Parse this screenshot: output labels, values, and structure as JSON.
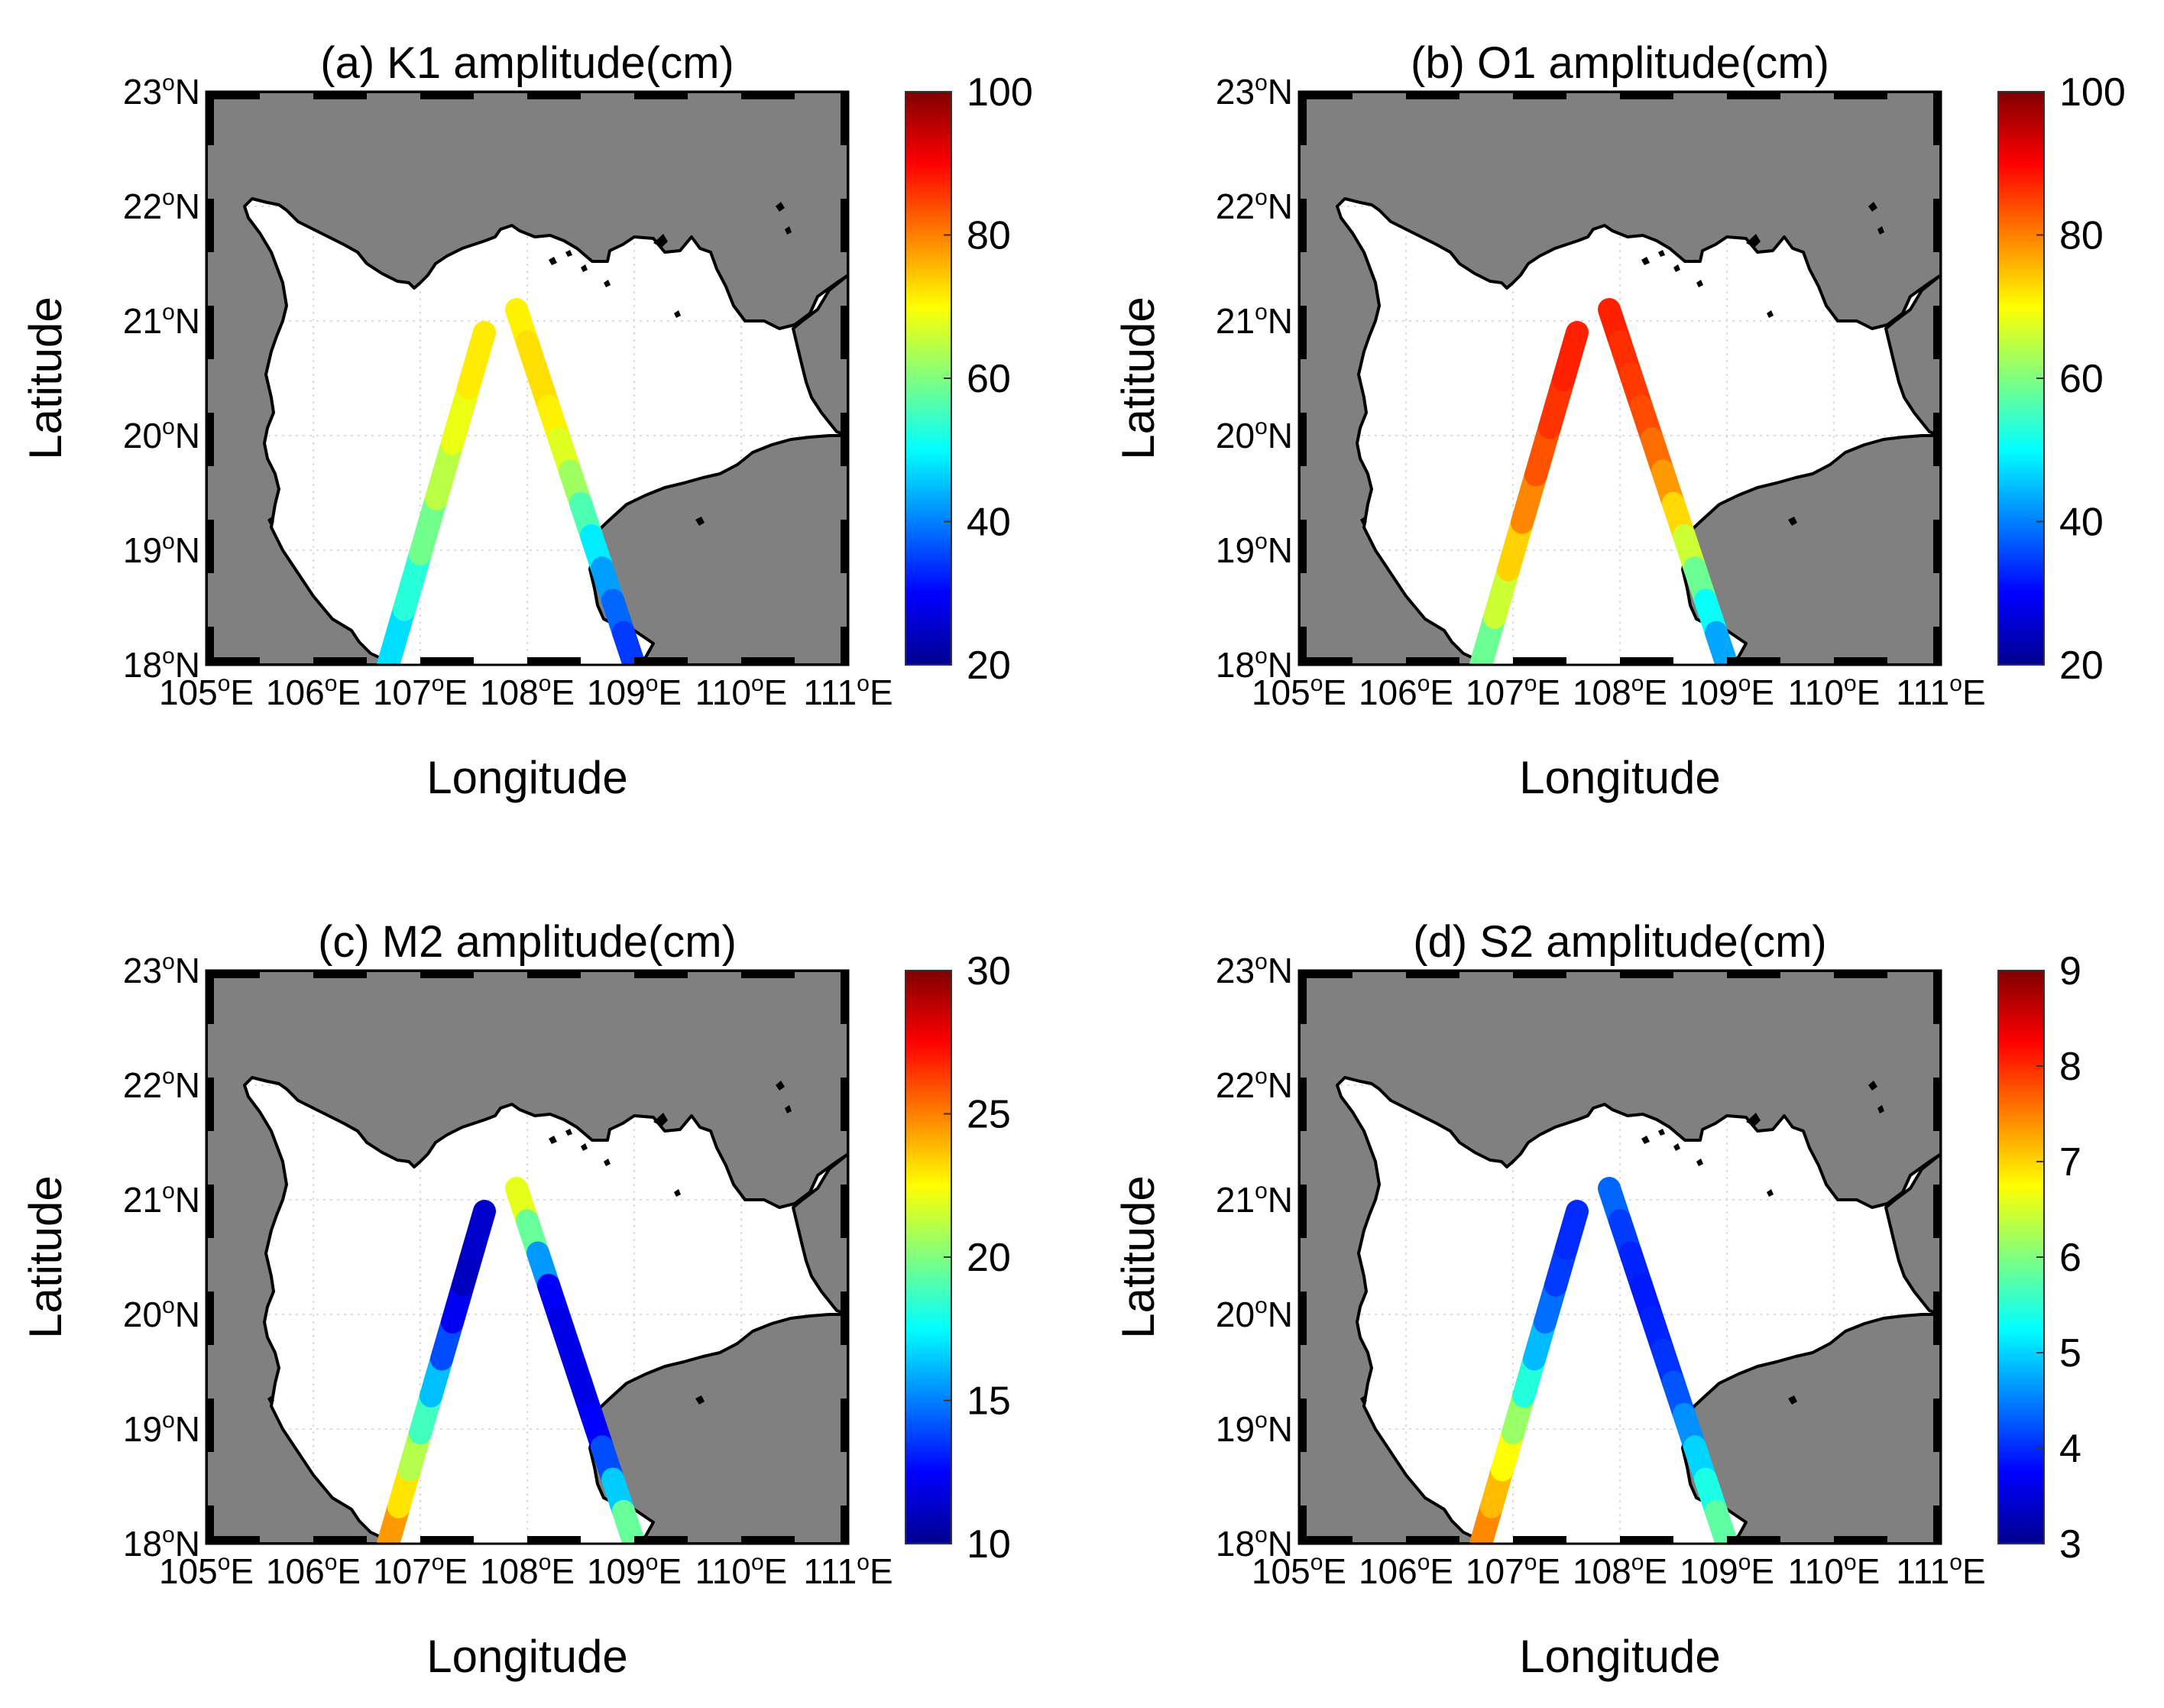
{
  "figure": {
    "panels": [
      {
        "id": "a",
        "title": "(a) K1 amplitude(cm)",
        "colorbar": {
          "min": 20,
          "max": 100,
          "ticks": [
            "20",
            "40",
            "60",
            "80",
            "100"
          ]
        },
        "track_A": [
          45,
          50,
          56,
          62,
          67,
          70,
          73
        ],
        "track_B": [
          70,
          72,
          73,
          72,
          70,
          65,
          60,
          52,
          45,
          40,
          36,
          33
        ]
      },
      {
        "id": "b",
        "title": "(b) O1 amplitude(cm)",
        "colorbar": {
          "min": 20,
          "max": 100,
          "ticks": [
            "20",
            "40",
            "60",
            "80",
            "100"
          ]
        },
        "track_A": [
          55,
          62,
          70,
          77,
          82,
          85,
          87,
          88
        ],
        "track_B": [
          88,
          87,
          86,
          85,
          83,
          80,
          76,
          70,
          62,
          55,
          46,
          40
        ]
      },
      {
        "id": "c",
        "title": "(c) M2 amplitude(cm)",
        "colorbar": {
          "min": 10,
          "max": 30,
          "ticks": [
            "10",
            "15",
            "20",
            "25",
            "30"
          ]
        },
        "track_A": [
          25,
          24,
          22,
          20,
          17.5,
          15,
          13,
          11.5,
          11,
          12
        ],
        "track_B": [
          23,
          21,
          18,
          13,
          12,
          12,
          12,
          12,
          13,
          15,
          18,
          21
        ]
      },
      {
        "id": "d",
        "title": "(d) S2 amplitude(cm)",
        "colorbar": {
          "min": 3,
          "max": 9,
          "ticks": [
            "3",
            "4",
            "5",
            "6",
            "7",
            "8",
            "9"
          ]
        },
        "track_A": [
          7.6,
          7.3,
          7,
          6.5,
          5.8,
          5.1,
          4.6,
          4.2,
          4,
          4
        ],
        "track_B": [
          4.5,
          4.2,
          4,
          3.9,
          3.9,
          4,
          4.1,
          4.4,
          4.8,
          5.2,
          5.6,
          6
        ]
      }
    ],
    "xlabel": "Longitude",
    "ylabel": "Latitude",
    "x_ticks": [
      {
        "num": "105",
        "deg": "o",
        "hem": "E"
      },
      {
        "num": "106",
        "deg": "o",
        "hem": "E"
      },
      {
        "num": "107",
        "deg": "o",
        "hem": "E"
      },
      {
        "num": "108",
        "deg": "o",
        "hem": "E"
      },
      {
        "num": "109",
        "deg": "o",
        "hem": "E"
      },
      {
        "num": "110",
        "deg": "o",
        "hem": "E"
      },
      {
        "num": "111",
        "deg": "o",
        "hem": "E"
      }
    ],
    "y_ticks": [
      {
        "num": "18",
        "deg": "o",
        "hem": "N"
      },
      {
        "num": "19",
        "deg": "o",
        "hem": "N"
      },
      {
        "num": "20",
        "deg": "o",
        "hem": "N"
      },
      {
        "num": "21",
        "deg": "o",
        "hem": "N"
      },
      {
        "num": "22",
        "deg": "o",
        "hem": "N"
      },
      {
        "num": "23",
        "deg": "o",
        "hem": "N"
      }
    ]
  },
  "chart_data": [
    {
      "type": "heatmap",
      "title": "(a) K1 amplitude(cm)",
      "xlabel": "Longitude",
      "ylabel": "Latitude",
      "xlim": [
        105,
        111
      ],
      "ylim": [
        18,
        23
      ],
      "color_scale": "jet",
      "clim": [
        20,
        100
      ],
      "tracks": [
        {
          "name": "track_A",
          "lon": [
            106.7,
            107.6
          ],
          "lat": [
            18.0,
            20.9
          ],
          "amplitude": [
            45,
            50,
            56,
            62,
            67,
            70,
            73
          ]
        },
        {
          "name": "track_B",
          "lon": [
            107.9,
            109.0
          ],
          "lat": [
            21.1,
            18.0
          ],
          "amplitude": [
            70,
            72,
            73,
            72,
            70,
            65,
            60,
            52,
            45,
            40,
            36,
            33
          ]
        }
      ]
    },
    {
      "type": "heatmap",
      "title": "(b) O1 amplitude(cm)",
      "xlabel": "Longitude",
      "ylabel": "Latitude",
      "xlim": [
        105,
        111
      ],
      "ylim": [
        18,
        23
      ],
      "color_scale": "jet",
      "clim": [
        20,
        100
      ],
      "tracks": [
        {
          "name": "track_A",
          "lon": [
            106.7,
            107.6
          ],
          "lat": [
            18.0,
            20.9
          ],
          "amplitude": [
            55,
            62,
            70,
            77,
            82,
            85,
            87,
            88
          ]
        },
        {
          "name": "track_B",
          "lon": [
            107.9,
            109.0
          ],
          "lat": [
            21.1,
            18.0
          ],
          "amplitude": [
            88,
            87,
            86,
            85,
            83,
            80,
            76,
            70,
            62,
            55,
            46,
            40
          ]
        }
      ]
    },
    {
      "type": "heatmap",
      "title": "(c) M2 amplitude(cm)",
      "xlabel": "Longitude",
      "ylabel": "Latitude",
      "xlim": [
        105,
        111
      ],
      "ylim": [
        18,
        23
      ],
      "color_scale": "jet",
      "clim": [
        10,
        30
      ],
      "tracks": [
        {
          "name": "track_A",
          "lon": [
            106.7,
            107.6
          ],
          "lat": [
            18.0,
            20.9
          ],
          "amplitude": [
            25,
            24,
            22,
            20,
            17.5,
            15,
            13,
            11.5,
            11,
            12
          ]
        },
        {
          "name": "track_B",
          "lon": [
            107.9,
            109.0
          ],
          "lat": [
            21.1,
            18.0
          ],
          "amplitude": [
            23,
            21,
            18,
            13,
            12,
            12,
            12,
            12,
            13,
            15,
            18,
            21
          ]
        }
      ]
    },
    {
      "type": "heatmap",
      "title": "(d) S2 amplitude(cm)",
      "xlabel": "Longitude",
      "ylabel": "Latitude",
      "xlim": [
        105,
        111
      ],
      "ylim": [
        18,
        23
      ],
      "color_scale": "jet",
      "clim": [
        3,
        9
      ],
      "tracks": [
        {
          "name": "track_A",
          "lon": [
            106.7,
            107.6
          ],
          "lat": [
            18.0,
            20.9
          ],
          "amplitude": [
            7.6,
            7.3,
            7,
            6.5,
            5.8,
            5.1,
            4.6,
            4.2,
            4,
            4
          ]
        },
        {
          "name": "track_B",
          "lon": [
            107.9,
            109.0
          ],
          "lat": [
            21.1,
            18.0
          ],
          "amplitude": [
            4.5,
            4.2,
            4,
            3.9,
            3.9,
            4,
            4.1,
            4.4,
            4.8,
            5.2,
            5.6,
            6
          ]
        }
      ]
    }
  ]
}
